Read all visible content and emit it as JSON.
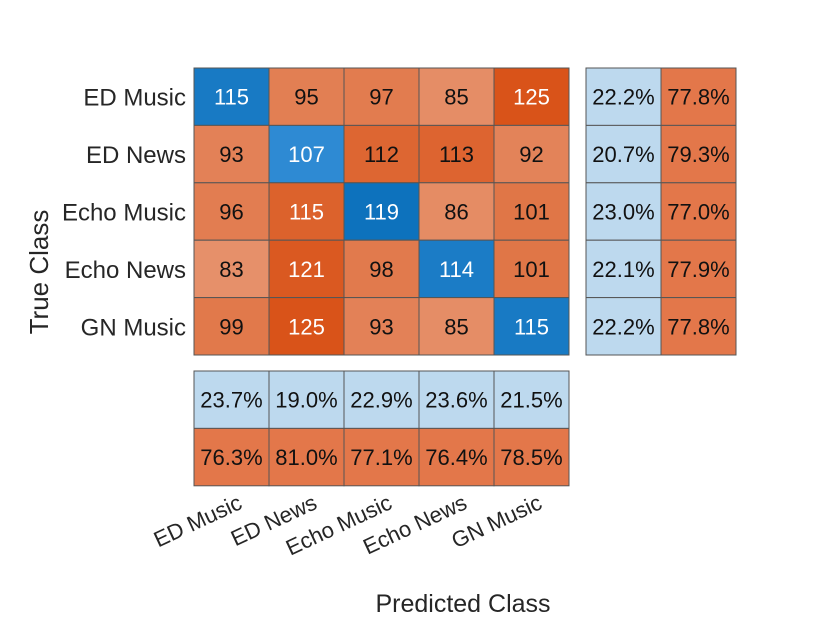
{
  "chart_data": {
    "type": "heatmap",
    "xlabel": "Predicted Class",
    "ylabel": "True Class",
    "classes": [
      "ED Music",
      "ED News",
      "Echo Music",
      "Echo News",
      "GN Music"
    ],
    "matrix": [
      [
        115,
        95,
        97,
        85,
        125
      ],
      [
        93,
        107,
        112,
        113,
        92
      ],
      [
        96,
        115,
        119,
        86,
        101
      ],
      [
        83,
        121,
        98,
        114,
        101
      ],
      [
        99,
        125,
        93,
        85,
        115
      ]
    ],
    "row_summary": [
      [
        "22.2%",
        "77.8%"
      ],
      [
        "20.7%",
        "79.3%"
      ],
      [
        "23.0%",
        "77.0%"
      ],
      [
        "22.1%",
        "77.9%"
      ],
      [
        "22.2%",
        "77.8%"
      ]
    ],
    "column_summary": {
      "correct": [
        "23.7%",
        "19.0%",
        "22.9%",
        "23.6%",
        "21.5%"
      ],
      "incorrect": [
        "76.3%",
        "81.0%",
        "77.1%",
        "76.4%",
        "78.5%"
      ]
    },
    "colors": {
      "diagonal_strong": "#0d72bd",
      "diagonal_light": "#2e8ad3",
      "offdiag_strong": "#d95319",
      "offdiag_light": "#e6906a",
      "summary_correct": "#bdd9ee",
      "summary_incorrect": "#e3774a",
      "cell_border": "#555555"
    }
  }
}
